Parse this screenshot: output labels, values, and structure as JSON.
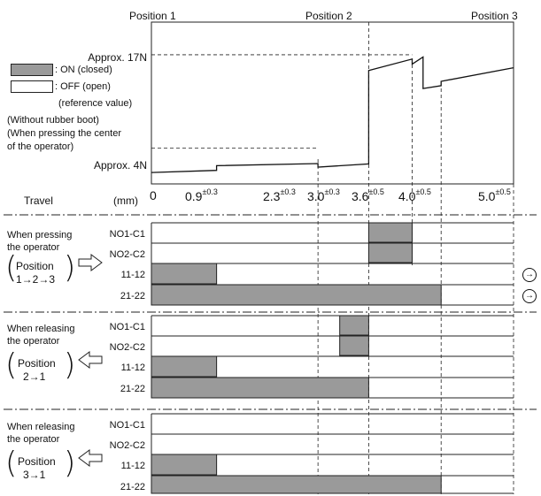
{
  "positions": [
    "Position 1",
    "Position 2",
    "Position 3"
  ],
  "force": {
    "high_label": "Approx. 17N",
    "low_label": "Approx. 4N",
    "profile": [
      {
        "x": 0.0,
        "f": 0.6
      },
      {
        "x": 0.9,
        "f": 0.9
      },
      {
        "x": 0.9,
        "f": 1.55
      },
      {
        "x": 2.3,
        "f": 1.85
      },
      {
        "x": 2.3,
        "f": 1.35
      },
      {
        "x": 3.0,
        "f": 1.8
      },
      {
        "x": 3.0,
        "f": 14.8
      },
      {
        "x": 3.6,
        "f": 16.4
      },
      {
        "x": 3.6,
        "f": 15.7
      },
      {
        "x": 3.75,
        "f": 16.7
      },
      {
        "x": 3.75,
        "f": 12.3
      },
      {
        "x": 4.0,
        "f": 12.7
      },
      {
        "x": 4.0,
        "f": 13.3
      },
      {
        "x": 5.0,
        "f": 15.2
      }
    ],
    "high_value": 17,
    "low_value": 4
  },
  "legend": {
    "on": ": ON (closed)",
    "off": ": OFF (open)",
    "off_note": "(reference value)",
    "on_color": "#9a9a9a",
    "off_color": "#ffffff"
  },
  "notes": [
    "(Without rubber boot)",
    "(When pressing the center",
    "of the operator)"
  ],
  "travel": {
    "label": "Travel",
    "unit": "(mm)",
    "ticks": [
      {
        "base": "0",
        "tol": "",
        "x": 0
      },
      {
        "base": "0.9",
        "tol": "±0.3",
        "x": 0.9
      },
      {
        "base": "2.3",
        "tol": "±0.3",
        "x": 2.3
      },
      {
        "base": "3.0",
        "tol": "±0.3",
        "x": 3.0
      },
      {
        "base": "3.6",
        "tol": "±0.5",
        "x": 3.6
      },
      {
        "base": "4.0",
        "tol": "±0.5",
        "x": 4.0
      },
      {
        "base": "5.0",
        "tol": "±0.5",
        "x": 5.0
      }
    ]
  },
  "sections": [
    {
      "line1": "When pressing",
      "line2": "the operator",
      "pos_top": "Position",
      "pos_bottom": "1→2→3",
      "arrow": "right",
      "rows": [
        {
          "label": "NO1-C1",
          "on": [
            [
              3.0,
              3.6
            ]
          ]
        },
        {
          "label": "NO2-C2",
          "on": [
            [
              3.0,
              3.6
            ]
          ]
        },
        {
          "label": "11-12",
          "on": [
            [
              0,
              0.9
            ]
          ]
        },
        {
          "label": "21-22",
          "on": [
            [
              0,
              4.0
            ]
          ]
        }
      ]
    },
    {
      "line1": "When releasing",
      "line2": "the operator",
      "pos_top": "Position",
      "pos_bottom": "2→1",
      "arrow": "left",
      "rows": [
        {
          "label": "NO1-C1",
          "on": [
            [
              2.6,
              3.0
            ]
          ]
        },
        {
          "label": "NO2-C2",
          "on": [
            [
              2.6,
              3.0
            ]
          ]
        },
        {
          "label": "11-12",
          "on": [
            [
              0,
              0.9
            ]
          ]
        },
        {
          "label": "21-22",
          "on": [
            [
              0,
              3.0
            ]
          ]
        }
      ]
    },
    {
      "line1": "When releasing",
      "line2": "the operator",
      "pos_top": "Position",
      "pos_bottom": "3→1",
      "arrow": "left",
      "rows": [
        {
          "label": "NO1-C1",
          "on": []
        },
        {
          "label": "NO2-C2",
          "on": []
        },
        {
          "label": "11-12",
          "on": [
            [
              0,
              0.9
            ]
          ]
        },
        {
          "label": "21-22",
          "on": [
            [
              0,
              4.0
            ]
          ]
        }
      ]
    }
  ],
  "continuation_markers": [
    "→",
    "→"
  ]
}
